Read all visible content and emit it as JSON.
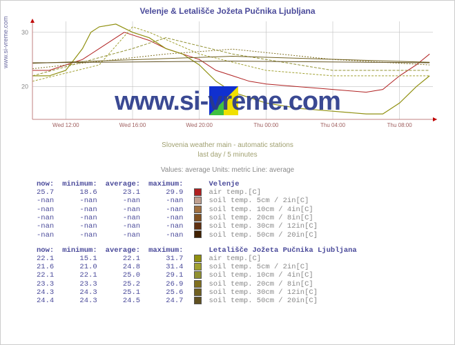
{
  "title": "Velenje & Letališče Jožeta Pučnika Ljubljana",
  "site_url": "www.si-vreme.com",
  "watermark": "www.si-vreme.com",
  "subtitle1": "Slovenia weather main - automatic stations",
  "subtitle2": "last day / 5 minutes",
  "meta": "Values: average   Units: metric   Line: average",
  "chart": {
    "type": "line",
    "xlim": [
      0,
      24
    ],
    "ylim": [
      14,
      32
    ],
    "yticks": [
      20,
      30
    ],
    "grid_color": "#bfbfbf",
    "background": "#ffffff",
    "axis_color": "#c08080",
    "arrow_color": "#c00000",
    "xticks": [
      {
        "x": 2,
        "label": "Wed 12:00"
      },
      {
        "x": 6,
        "label": "Wed 16:00"
      },
      {
        "x": 10,
        "label": "Wed 20:00"
      },
      {
        "x": 14,
        "label": "Thu 00:00"
      },
      {
        "x": 18,
        "label": "Thu 04:00"
      },
      {
        "x": 22,
        "label": "Thu 08:00"
      }
    ],
    "series": [
      {
        "name": "air-velenje",
        "color": "#b02020",
        "width": 1,
        "pts": [
          [
            0,
            23
          ],
          [
            1,
            23
          ],
          [
            2,
            24
          ],
          [
            3,
            25
          ],
          [
            4,
            27
          ],
          [
            5,
            29
          ],
          [
            5.5,
            30
          ],
          [
            6,
            29.5
          ],
          [
            7,
            28.5
          ],
          [
            8,
            27
          ],
          [
            9,
            26
          ],
          [
            10,
            25
          ],
          [
            11,
            23
          ],
          [
            12,
            22
          ],
          [
            13,
            21
          ],
          [
            14,
            20.5
          ],
          [
            16,
            20
          ],
          [
            18,
            19.5
          ],
          [
            20,
            19
          ],
          [
            21,
            19.5
          ],
          [
            22,
            22
          ],
          [
            23,
            24
          ],
          [
            23.8,
            26
          ]
        ]
      },
      {
        "name": "air-ljubljana",
        "color": "#909010",
        "width": 1.2,
        "pts": [
          [
            0,
            22
          ],
          [
            1,
            22
          ],
          [
            2,
            23
          ],
          [
            3,
            27
          ],
          [
            3.5,
            30
          ],
          [
            4,
            31
          ],
          [
            5,
            31.5
          ],
          [
            6,
            30
          ],
          [
            7,
            29
          ],
          [
            8,
            27
          ],
          [
            9,
            26
          ],
          [
            10,
            24
          ],
          [
            11,
            21
          ],
          [
            12,
            19
          ],
          [
            13,
            18
          ],
          [
            14,
            17
          ],
          [
            16,
            16
          ],
          [
            18,
            15.5
          ],
          [
            20,
            15
          ],
          [
            21,
            15
          ],
          [
            22,
            17
          ],
          [
            23,
            20
          ],
          [
            23.8,
            22
          ]
        ]
      },
      {
        "name": "soil5-lj",
        "color": "#a0a030",
        "width": 1,
        "dash": "3,2",
        "pts": [
          [
            0,
            21
          ],
          [
            4,
            24
          ],
          [
            6,
            31
          ],
          [
            7,
            30
          ],
          [
            10,
            26
          ],
          [
            14,
            23
          ],
          [
            18,
            22
          ],
          [
            23.8,
            22
          ]
        ]
      },
      {
        "name": "soil10-lj",
        "color": "#909030",
        "width": 1,
        "dash": "4,2",
        "pts": [
          [
            0,
            22
          ],
          [
            6,
            27
          ],
          [
            8,
            29
          ],
          [
            12,
            26
          ],
          [
            18,
            23
          ],
          [
            23.8,
            23
          ]
        ]
      },
      {
        "name": "soil20-lj",
        "color": "#807020",
        "width": 1,
        "dash": "2,2",
        "pts": [
          [
            0,
            23.3
          ],
          [
            8,
            26
          ],
          [
            12,
            26.9
          ],
          [
            18,
            25
          ],
          [
            23.8,
            24
          ]
        ]
      },
      {
        "name": "soil30-lj",
        "color": "#706020",
        "width": 1,
        "pts": [
          [
            0,
            24.3
          ],
          [
            12,
            25.6
          ],
          [
            23.8,
            24.5
          ]
        ]
      },
      {
        "name": "soil50-lj",
        "color": "#605020",
        "width": 1,
        "pts": [
          [
            0,
            24.4
          ],
          [
            12,
            24.7
          ],
          [
            23.8,
            24.4
          ]
        ]
      }
    ]
  },
  "headers": {
    "now": "now:",
    "min": "minimum:",
    "avg": "average:",
    "max": "maximum:"
  },
  "stations": [
    {
      "name": "Velenje",
      "rows": [
        {
          "now": "25.7",
          "min": "18.6",
          "avg": "23.1",
          "max": "29.9",
          "swatch": "#b02020",
          "label": "air temp.[C]"
        },
        {
          "now": "-nan",
          "min": "-nan",
          "avg": "-nan",
          "max": "-nan",
          "swatch": "#c0a090",
          "label": "soil temp. 5cm / 2in[C]"
        },
        {
          "now": "-nan",
          "min": "-nan",
          "avg": "-nan",
          "max": "-nan",
          "swatch": "#a07040",
          "label": "soil temp. 10cm / 4in[C]"
        },
        {
          "now": "-nan",
          "min": "-nan",
          "avg": "-nan",
          "max": "-nan",
          "swatch": "#805020",
          "label": "soil temp. 20cm / 8in[C]"
        },
        {
          "now": "-nan",
          "min": "-nan",
          "avg": "-nan",
          "max": "-nan",
          "swatch": "#603010",
          "label": "soil temp. 30cm / 12in[C]"
        },
        {
          "now": "-nan",
          "min": "-nan",
          "avg": "-nan",
          "max": "-nan",
          "swatch": "#402000",
          "label": "soil temp. 50cm / 20in[C]"
        }
      ]
    },
    {
      "name": "Letališče Jožeta Pučnika Ljubljana",
      "rows": [
        {
          "now": "22.1",
          "min": "15.1",
          "avg": "22.1",
          "max": "31.7",
          "swatch": "#909010",
          "label": "air temp.[C]"
        },
        {
          "now": "21.6",
          "min": "21.0",
          "avg": "24.8",
          "max": "31.4",
          "swatch": "#a0a030",
          "label": "soil temp. 5cm / 2in[C]"
        },
        {
          "now": "22.1",
          "min": "22.1",
          "avg": "25.0",
          "max": "29.1",
          "swatch": "#909030",
          "label": "soil temp. 10cm / 4in[C]"
        },
        {
          "now": "23.3",
          "min": "23.3",
          "avg": "25.2",
          "max": "26.9",
          "swatch": "#807020",
          "label": "soil temp. 20cm / 8in[C]"
        },
        {
          "now": "24.3",
          "min": "24.3",
          "avg": "25.1",
          "max": "25.6",
          "swatch": "#706020",
          "label": "soil temp. 30cm / 12in[C]"
        },
        {
          "now": "24.4",
          "min": "24.3",
          "avg": "24.5",
          "max": "24.7",
          "swatch": "#605020",
          "label": "soil temp. 50cm / 20in[C]"
        }
      ]
    }
  ]
}
